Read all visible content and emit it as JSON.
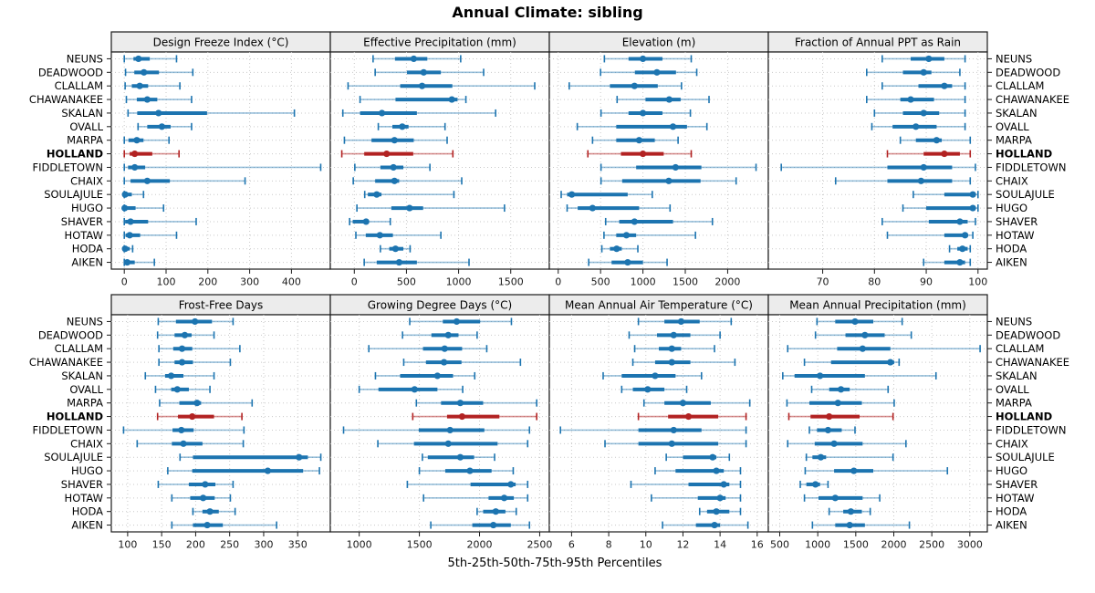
{
  "title": "Annual Climate: sibling",
  "caption": "5th-25th-50th-75th-95th Percentiles",
  "highlight_site": "HOLLAND",
  "colors": {
    "series": "#1c74b0",
    "series_light": "rgba(28,116,176,0.45)",
    "highlight": "#b22222",
    "highlight_light": "rgba(178,34,34,0.5)",
    "strip_bg": "#ececec",
    "panel_border": "#1a1a1a",
    "grid": "#c9c9c9",
    "tick_label": "#1a1a1a",
    "site_label": "#000000"
  },
  "chart_data": {
    "type": "trellis-percentile-dotplot",
    "layout": {
      "rows": 2,
      "cols": 4,
      "grid": "dotted",
      "category_axis": "y-both-sides"
    },
    "percentile_labels": [
      "5th",
      "25th",
      "50th",
      "75th",
      "95th"
    ],
    "categories": [
      "NEUNS",
      "DEADWOOD",
      "CLALLAM",
      "CHAWANAKEE",
      "SKALAN",
      "OVALL",
      "MARPA",
      "HOLLAND",
      "FIDDLETOWN",
      "CHAIX",
      "SOULAJULE",
      "HUGO",
      "SHAVER",
      "HOTAW",
      "HODA",
      "AIKEN"
    ],
    "panels": [
      {
        "title": "Design Freeze Index (°C)",
        "ticks": [
          0,
          100,
          200,
          300,
          400
        ],
        "xlim": [
          -31,
          493
        ],
        "values": {
          "NEUNS": [
            0,
            22,
            34,
            61,
            125
          ],
          "DEADWOOD": [
            3,
            24,
            47,
            83,
            164
          ],
          "CLALLAM": [
            2,
            18,
            37,
            57,
            133
          ],
          "CHAWANAKEE": [
            5,
            30,
            55,
            79,
            161
          ],
          "SKALAN": [
            9,
            31,
            82,
            198,
            407
          ],
          "OVALL": [
            33,
            55,
            90,
            111,
            161
          ],
          "MARPA": [
            0,
            10,
            30,
            46,
            107
          ],
          "HOLLAND": [
            0,
            13,
            25,
            67,
            131
          ],
          "FIDDLETOWN": [
            0,
            9,
            25,
            50,
            470
          ],
          "CHAIX": [
            0,
            15,
            55,
            109,
            289
          ],
          "SOULAJULE": [
            0,
            0,
            2,
            18,
            46
          ],
          "HUGO": [
            0,
            0,
            1,
            27,
            94
          ],
          "SHAVER": [
            0,
            2,
            15,
            57,
            172
          ],
          "HOTAW": [
            0,
            3,
            13,
            38,
            125
          ],
          "HODA": [
            0,
            0,
            2,
            13,
            20
          ],
          "AIKEN": [
            0,
            1,
            7,
            25,
            72
          ]
        }
      },
      {
        "title": "Effective Precipitation (mm)",
        "ticks": [
          0,
          500,
          1000,
          1500,
          2000
        ],
        "xlim": [
          -230,
          1870
        ],
        "values": {
          "NEUNS": [
            180,
            390,
            570,
            700,
            1020
          ],
          "DEADWOOD": [
            200,
            505,
            665,
            830,
            1240
          ],
          "CLALLAM": [
            -60,
            440,
            650,
            940,
            1730
          ],
          "CHAWANAKEE": [
            55,
            395,
            935,
            990,
            1070
          ],
          "SKALAN": [
            -110,
            55,
            265,
            600,
            1355
          ],
          "OVALL": [
            230,
            365,
            460,
            520,
            870
          ],
          "MARPA": [
            -95,
            165,
            385,
            570,
            890
          ],
          "HOLLAND": [
            -120,
            95,
            310,
            565,
            945
          ],
          "FIDDLETOWN": [
            5,
            250,
            375,
            470,
            725
          ],
          "CHAIX": [
            -10,
            200,
            385,
            430,
            1030
          ],
          "SOULAJULE": [
            100,
            130,
            215,
            260,
            955
          ],
          "HUGO": [
            25,
            355,
            530,
            660,
            1440
          ],
          "SHAVER": [
            -45,
            -15,
            113,
            122,
            345
          ],
          "HOTAW": [
            15,
            110,
            245,
            370,
            830
          ],
          "HODA": [
            250,
            335,
            395,
            470,
            535
          ],
          "AIKEN": [
            95,
            215,
            430,
            600,
            1100
          ]
        }
      },
      {
        "title": "Elevation (m)",
        "ticks": [
          0,
          500,
          1000,
          1500,
          2000
        ],
        "xlim": [
          -105,
          2480
        ],
        "values": {
          "NEUNS": [
            545,
            830,
            1000,
            1230,
            1570
          ],
          "DEADWOOD": [
            500,
            905,
            1165,
            1390,
            1635
          ],
          "CLALLAM": [
            130,
            610,
            900,
            1175,
            1455
          ],
          "CHAWANAKEE": [
            695,
            1030,
            1310,
            1445,
            1780
          ],
          "SKALAN": [
            505,
            830,
            1000,
            1230,
            1560
          ],
          "OVALL": [
            225,
            685,
            1355,
            1520,
            1755
          ],
          "MARPA": [
            405,
            685,
            955,
            1140,
            1415
          ],
          "HOLLAND": [
            350,
            740,
            1000,
            1245,
            1570
          ],
          "FIDDLETOWN": [
            505,
            920,
            1385,
            1690,
            2335
          ],
          "CHAIX": [
            505,
            755,
            1305,
            1680,
            2100
          ],
          "SOULAJULE": [
            35,
            105,
            160,
            820,
            1110
          ],
          "HUGO": [
            105,
            230,
            405,
            955,
            1320
          ],
          "SHAVER": [
            560,
            720,
            900,
            1355,
            1820
          ],
          "HOTAW": [
            540,
            685,
            805,
            920,
            1620
          ],
          "HODA": [
            515,
            610,
            690,
            750,
            940
          ],
          "AIKEN": [
            360,
            630,
            820,
            1000,
            1285
          ]
        }
      },
      {
        "title": "Fraction of Annual PPT as Rain",
        "ticks": [
          70,
          80,
          90,
          100
        ],
        "xlim": [
          59.5,
          101.8
        ],
        "values": {
          "NEUNS": [
            81.5,
            87,
            90.5,
            93.5,
            97.5
          ],
          "DEADWOOD": [
            78.5,
            85.5,
            89.5,
            91,
            96.5
          ],
          "CLALLAM": [
            81.5,
            88.5,
            93.5,
            95,
            97.5
          ],
          "CHAWANAKEE": [
            78.5,
            85,
            87,
            91.5,
            97.5
          ],
          "SKALAN": [
            80,
            85.5,
            89.5,
            92.5,
            97.5
          ],
          "OVALL": [
            79.5,
            83.5,
            88,
            92,
            97.5
          ],
          "MARPA": [
            85,
            88,
            92,
            93,
            98.5
          ],
          "HOLLAND": [
            82.5,
            89.5,
            93.5,
            96.5,
            98.5
          ],
          "FIDDLETOWN": [
            62,
            82.5,
            89.5,
            95,
            99.5
          ],
          "CHAIX": [
            72.5,
            82.5,
            89,
            95,
            98.5
          ],
          "SOULAJULE": [
            87.5,
            93.5,
            99,
            99.5,
            100
          ],
          "HUGO": [
            85.5,
            90,
            99,
            99.5,
            100
          ],
          "SHAVER": [
            81.5,
            90.5,
            96.5,
            98,
            99.5
          ],
          "HOTAW": [
            82.5,
            93.5,
            97.5,
            98,
            99
          ],
          "HODA": [
            94.5,
            96,
            97,
            98,
            98.5
          ],
          "AIKEN": [
            89.5,
            93.5,
            96.5,
            97.5,
            98.5
          ]
        }
      },
      {
        "title": "Frost-Free Days",
        "ticks": [
          100,
          150,
          200,
          250,
          300,
          350
        ],
        "xlim": [
          76,
          398
        ],
        "values": {
          "NEUNS": [
            145,
            171,
            199,
            224,
            255
          ],
          "DEADWOOD": [
            144,
            169,
            184,
            194,
            227
          ],
          "CLALLAM": [
            146,
            167,
            180,
            195,
            265
          ],
          "CHAWANAKEE": [
            146,
            169,
            180,
            196,
            251
          ],
          "SKALAN": [
            126,
            155,
            164,
            182,
            227
          ],
          "OVALL": [
            141,
            164,
            173,
            190,
            221
          ],
          "MARPA": [
            147,
            176,
            202,
            208,
            283
          ],
          "HOLLAND": [
            144,
            174,
            195,
            227,
            268
          ],
          "FIDDLETOWN": [
            94,
            166,
            179,
            197,
            271
          ],
          "CHAIX": [
            114,
            165,
            182,
            210,
            270
          ],
          "SOULAJULE": [
            177,
            196,
            352,
            365,
            384
          ],
          "HUGO": [
            159,
            195,
            306,
            358,
            382
          ],
          "SHAVER": [
            145,
            190,
            214,
            229,
            255
          ],
          "HOTAW": [
            165,
            192,
            211,
            228,
            251
          ],
          "HODA": [
            196,
            210,
            221,
            234,
            258
          ],
          "AIKEN": [
            165,
            196,
            217,
            240,
            319
          ]
        }
      },
      {
        "title": "Growing Degree Days (°C)",
        "ticks": [
          1000,
          1500,
          2000,
          2500
        ],
        "xlim": [
          760,
          2580
        ],
        "values": {
          "NEUNS": [
            1420,
            1695,
            1810,
            2005,
            2265
          ],
          "DEADWOOD": [
            1360,
            1600,
            1740,
            1825,
            1980
          ],
          "CLALLAM": [
            1080,
            1530,
            1710,
            1855,
            2060
          ],
          "CHAWANAKEE": [
            1370,
            1555,
            1705,
            1850,
            2340
          ],
          "SKALAN": [
            1135,
            1340,
            1650,
            1780,
            1960
          ],
          "OVALL": [
            1000,
            1160,
            1460,
            1650,
            1860
          ],
          "MARPA": [
            1475,
            1680,
            1840,
            2030,
            2475
          ],
          "HOLLAND": [
            1445,
            1730,
            1855,
            2165,
            2475
          ],
          "FIDDLETOWN": [
            870,
            1495,
            1755,
            2040,
            2415
          ],
          "CHAIX": [
            1155,
            1455,
            1740,
            2150,
            2400
          ],
          "SOULAJULE": [
            1525,
            1570,
            1840,
            1955,
            2125
          ],
          "HUGO": [
            1500,
            1715,
            1920,
            2100,
            2280
          ],
          "SHAVER": [
            1400,
            1925,
            2260,
            2300,
            2400
          ],
          "HOTAW": [
            1535,
            2075,
            2205,
            2285,
            2400
          ],
          "HODA": [
            1980,
            2030,
            2135,
            2215,
            2305
          ],
          "AIKEN": [
            1595,
            1940,
            2115,
            2260,
            2415
          ]
        }
      },
      {
        "title": "Mean Annual Air Temperature (°C)",
        "ticks": [
          6,
          8,
          10,
          12,
          14,
          16
        ],
        "xlim": [
          4.8,
          16.6
        ],
        "values": {
          "NEUNS": [
            9.6,
            11.0,
            11.9,
            12.9,
            14.6
          ],
          "DEADWOOD": [
            9.1,
            10.6,
            11.5,
            12.4,
            14.0
          ],
          "CLALLAM": [
            9.4,
            10.7,
            11.4,
            11.9,
            13.7
          ],
          "CHAWANAKEE": [
            9.3,
            10.5,
            11.4,
            12.4,
            14.8
          ],
          "SKALAN": [
            7.7,
            8.7,
            10.5,
            11.6,
            13.0
          ],
          "OVALL": [
            8.7,
            9.3,
            10.1,
            11.0,
            12.2
          ],
          "MARPA": [
            9.9,
            11.0,
            12.0,
            13.5,
            15.6
          ],
          "HOLLAND": [
            9.6,
            11.2,
            12.3,
            13.9,
            15.4
          ],
          "FIDDLETOWN": [
            5.4,
            9.6,
            11.5,
            13.0,
            15.4
          ],
          "CHAIX": [
            7.8,
            9.6,
            11.4,
            13.9,
            15.4
          ],
          "SOULAJULE": [
            11.1,
            12.0,
            13.6,
            13.8,
            14.5
          ],
          "HUGO": [
            10.5,
            11.6,
            13.8,
            14.2,
            15.1
          ],
          "SHAVER": [
            9.2,
            12.3,
            14.2,
            14.5,
            15.1
          ],
          "HOTAW": [
            10.3,
            12.8,
            14.0,
            14.3,
            15.1
          ],
          "HODA": [
            12.9,
            13.3,
            13.8,
            14.5,
            15.1
          ],
          "AIKEN": [
            10.9,
            12.7,
            13.7,
            14.0,
            15.5
          ]
        }
      },
      {
        "title": "Mean Annual Precipitation (mm)",
        "ticks": [
          500,
          1000,
          1500,
          2000,
          2500,
          3000
        ],
        "xlim": [
          350,
          3230
        ],
        "values": {
          "NEUNS": [
            990,
            1230,
            1490,
            1730,
            2110
          ],
          "DEADWOOD": [
            970,
            1365,
            1620,
            1880,
            2230
          ],
          "CLALLAM": [
            605,
            1255,
            1590,
            1955,
            3135
          ],
          "CHAWANAKEE": [
            825,
            1175,
            1955,
            2005,
            2070
          ],
          "SKALAN": [
            540,
            695,
            1030,
            1620,
            2555
          ],
          "OVALL": [
            920,
            1150,
            1305,
            1420,
            1925
          ],
          "MARPA": [
            595,
            890,
            1265,
            1580,
            2005
          ],
          "HOLLAND": [
            620,
            905,
            1150,
            1550,
            1990
          ],
          "FIDDLETOWN": [
            890,
            990,
            1135,
            1315,
            1490
          ],
          "CHAIX": [
            605,
            960,
            1215,
            1590,
            2160
          ],
          "SOULAJULE": [
            850,
            930,
            1040,
            1110,
            1990
          ],
          "HUGO": [
            835,
            1215,
            1475,
            1730,
            2705
          ],
          "SHAVER": [
            770,
            850,
            970,
            1030,
            1135
          ],
          "HOTAW": [
            825,
            1010,
            1230,
            1590,
            1815
          ],
          "HODA": [
            1150,
            1335,
            1435,
            1580,
            1690
          ],
          "AIKEN": [
            930,
            1230,
            1420,
            1620,
            2205
          ]
        }
      }
    ]
  }
}
